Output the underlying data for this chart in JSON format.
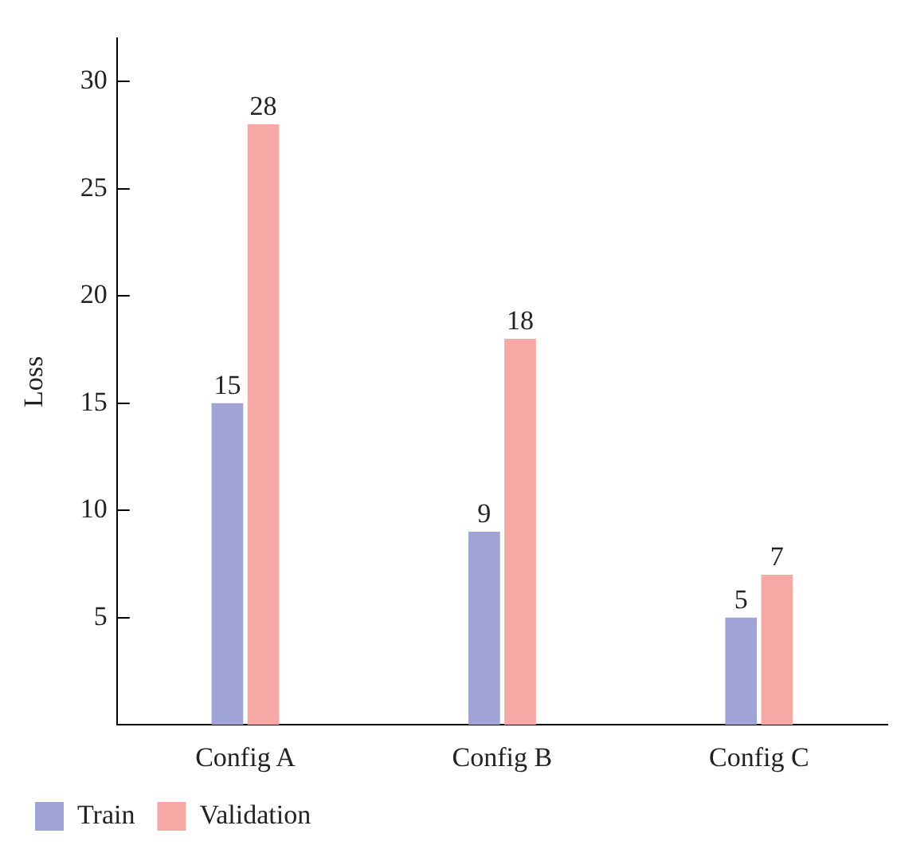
{
  "chart_data": {
    "type": "bar",
    "ylabel": "Loss",
    "categories": [
      "Config A",
      "Config B",
      "Config C"
    ],
    "series": [
      {
        "name": "Train",
        "color": "#9fa3d6",
        "values": [
          15,
          9,
          5
        ]
      },
      {
        "name": "Validation",
        "color": "#f6a9a4",
        "values": [
          28,
          18,
          7
        ]
      }
    ],
    "ylim": [
      0,
      32
    ],
    "yticks": [
      5,
      10,
      15,
      20,
      25,
      30
    ],
    "grid": false,
    "legend": "bottom left",
    "data_labels": true
  }
}
